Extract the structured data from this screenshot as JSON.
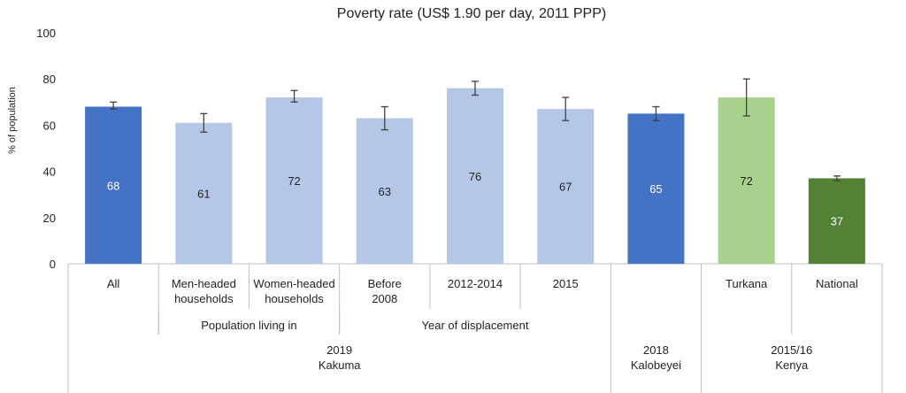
{
  "chart_data": {
    "type": "bar",
    "title": "Poverty rate (US$ 1.90 per day, 2011 PPP)",
    "ylabel": "% of population",
    "ylim": [
      0,
      100
    ],
    "yticks": [
      0,
      20,
      40,
      60,
      80,
      100
    ],
    "grid": false,
    "legend": "none",
    "categories": [
      [
        "All"
      ],
      [
        "Men-headed",
        "households"
      ],
      [
        "Women-headed",
        "households"
      ],
      [
        "Before",
        "2008"
      ],
      [
        "2012-2014"
      ],
      [
        "2015"
      ],
      [
        ""
      ],
      [
        "Turkana"
      ],
      [
        "National"
      ]
    ],
    "values": [
      68,
      61,
      72,
      63,
      76,
      67,
      65,
      72,
      37
    ],
    "data_labels": [
      "68",
      "61",
      "72",
      "63",
      "76",
      "67",
      "65",
      "72",
      "37"
    ],
    "error_low": [
      67,
      57,
      70,
      58,
      73,
      62,
      62,
      64,
      36
    ],
    "error_high": [
      70,
      65,
      75,
      68,
      79,
      72,
      68,
      80,
      38
    ],
    "colors": [
      "#4472c4",
      "#b4c7e7",
      "#b4c7e7",
      "#b4c7e7",
      "#b4c7e7",
      "#b4c7e7",
      "#4472c4",
      "#a9d18e",
      "#548235"
    ],
    "label_colors": [
      "#ffffff",
      "#222222",
      "#222222",
      "#222222",
      "#222222",
      "#222222",
      "#ffffff",
      "#222222",
      "#ffffff"
    ],
    "groups_level1": [
      {
        "label": "Population living in",
        "span": [
          1,
          2
        ]
      },
      {
        "label": "Year of displacement",
        "span": [
          3,
          5
        ]
      }
    ],
    "groups_level2": [
      {
        "label": [
          "2019",
          "Kakuma"
        ],
        "span": [
          0,
          5
        ]
      },
      {
        "label": [
          "2018",
          "Kalobeyei"
        ],
        "span": [
          6,
          6
        ]
      },
      {
        "label": [
          "2015/16",
          "Kenya"
        ],
        "span": [
          7,
          8
        ]
      }
    ]
  }
}
